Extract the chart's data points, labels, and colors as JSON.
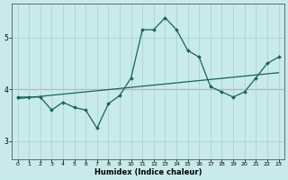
{
  "xlabel": "Humidex (Indice chaleur)",
  "background_color": "#c8eaea",
  "grid_color": "#a8d4d4",
  "line_color": "#1a6060",
  "hline_color": "#cc4444",
  "xlim": [
    -0.5,
    23.5
  ],
  "ylim": [
    2.65,
    5.65
  ],
  "yticks": [
    3,
    4,
    5
  ],
  "xticks": [
    0,
    1,
    2,
    3,
    4,
    5,
    6,
    7,
    8,
    9,
    10,
    11,
    12,
    13,
    14,
    15,
    16,
    17,
    18,
    19,
    20,
    21,
    22,
    23
  ],
  "line1_x": [
    0,
    1,
    2,
    3,
    4,
    5,
    6,
    7,
    8,
    9,
    10,
    11,
    12,
    13,
    14,
    15,
    16,
    17,
    18,
    19,
    20,
    21,
    22,
    23
  ],
  "line1_y": [
    3.85,
    3.85,
    3.85,
    3.6,
    3.75,
    3.65,
    3.6,
    3.25,
    3.72,
    3.88,
    4.22,
    5.15,
    5.15,
    5.38,
    5.15,
    4.75,
    4.62,
    4.05,
    3.95,
    3.85,
    3.95,
    4.22,
    4.5,
    4.62
  ],
  "line2_x": [
    0,
    23
  ],
  "line2_y": [
    3.82,
    4.32
  ],
  "hline_y": 4.0
}
